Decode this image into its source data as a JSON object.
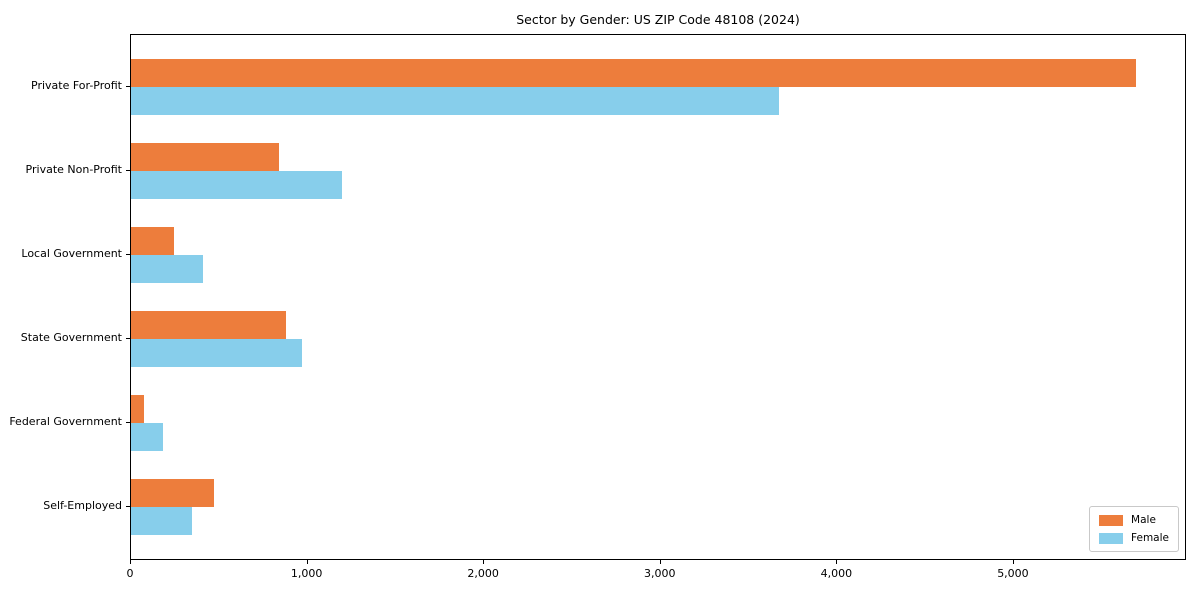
{
  "title": "Sector by Gender: US ZIP Code 48108 (2024)",
  "colors": {
    "male": "#ED7D3C",
    "female": "#87CEEB",
    "axis": "#000000",
    "legend_border": "#C9C9C9",
    "background": "#FFFFFF"
  },
  "chart_data": {
    "type": "bar",
    "orientation": "horizontal",
    "title": "Sector by Gender: US ZIP Code 48108 (2024)",
    "xlabel": "",
    "ylabel": "",
    "categories": [
      "Private For-Profit",
      "Private Non-Profit",
      "Local Government",
      "State Government",
      "Federal Government",
      "Self-Employed"
    ],
    "series": [
      {
        "name": "Male",
        "color": "#ED7D3C",
        "values": [
          5690,
          840,
          245,
          880,
          75,
          470
        ]
      },
      {
        "name": "Female",
        "color": "#87CEEB",
        "values": [
          3670,
          1195,
          405,
          970,
          180,
          345
        ]
      }
    ],
    "xlim": [
      0,
      5980
    ],
    "xticks": [
      0,
      1000,
      2000,
      3000,
      4000,
      5000
    ],
    "xtick_labels": [
      "0",
      "1,000",
      "2,000",
      "3,000",
      "4,000",
      "5,000"
    ],
    "grid": false,
    "legend_position": "lower right",
    "legend_labels": [
      "Male",
      "Female"
    ]
  }
}
